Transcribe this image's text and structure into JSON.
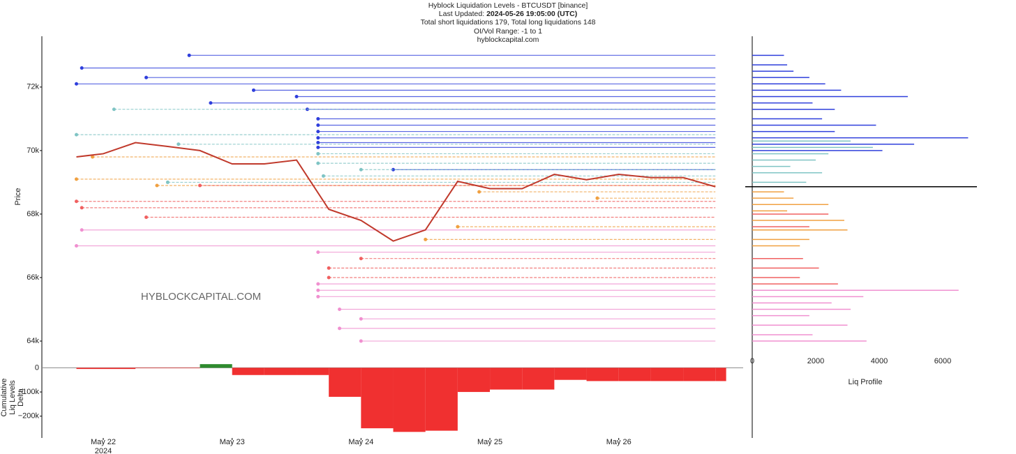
{
  "chart_data": [
    {
      "type": "line",
      "title": "Hyblock Liquidation Levels - BTCUSDT [binance]",
      "updated_label": "Last Updated:",
      "updated_value": "2024-05-26 19:05:00 (UTC)",
      "totals": "Total short liquidations 179, Total long liquidations 148",
      "range": "OI/Vol Range: -1 to 1",
      "site": "hyblockcapital.com",
      "watermark": "HYBLOCKCAPITAL.COM",
      "ylabel": "Price",
      "x": [
        "2024-05-21 19:00",
        "2024-05-22 00:00",
        "2024-05-22 06:00",
        "2024-05-22 12:00",
        "2024-05-22 18:00",
        "2024-05-23 00:00",
        "2024-05-23 06:00",
        "2024-05-23 12:00",
        "2024-05-23 18:00",
        "2024-05-24 00:00",
        "2024-05-24 06:00",
        "2024-05-24 12:00",
        "2024-05-24 18:00",
        "2024-05-25 00:00",
        "2024-05-25 06:00",
        "2024-05-25 12:00",
        "2024-05-25 18:00",
        "2024-05-26 00:00",
        "2024-05-26 06:00",
        "2024-05-26 12:00",
        "2024-05-26 18:00"
      ],
      "series": [
        {
          "color": "#c0392b",
          "values": [
            69800,
            69900,
            70250,
            70130,
            70000,
            69580,
            69580,
            69700,
            68150,
            67800,
            67150,
            67500,
            69030,
            68800,
            68800,
            69250,
            69080,
            69250,
            69150,
            69150,
            68860
          ]
        }
      ],
      "xlim": [
        "2024-05-21 12:34",
        "2024-05-26 23:10"
      ],
      "xticks": [
        {
          "value": "2024-05-22 00:00",
          "label": "May 22"
        },
        {
          "value": "2024-05-23 00:00",
          "label": "May 23"
        },
        {
          "value": "2024-05-24 00:00",
          "label": "May 24"
        },
        {
          "value": "2024-05-25 00:00",
          "label": "May 25"
        },
        {
          "value": "2024-05-26 00:00",
          "label": "May 26"
        }
      ],
      "x_year_label": "2024",
      "ylim": [
        63540,
        73600
      ],
      "yticks": [
        {
          "value": 64000,
          "label": "64k"
        },
        {
          "value": 66000,
          "label": "66k"
        },
        {
          "value": 68000,
          "label": "68k"
        },
        {
          "value": 70000,
          "label": "70k"
        },
        {
          "value": 72000,
          "label": "72k"
        }
      ],
      "levels": [
        {
          "color": "#2f3fdc",
          "prices": [
            73000,
            72600,
            72300,
            72100,
            71900,
            71700,
            71500,
            71300,
            71000,
            70800,
            70600,
            70400,
            70250,
            70100,
            69400
          ],
          "starts": [
            "2024-05-22 16:00",
            "2024-05-21 20:00",
            "2024-05-22 08:00",
            "2024-05-21 19:00",
            "2024-05-23 04:00",
            "2024-05-23 12:00",
            "2024-05-22 20:00",
            "2024-05-23 14:00",
            "2024-05-23 16:00",
            "2024-05-23 16:00",
            "2024-05-23 16:00",
            "2024-05-23 16:00",
            "2024-05-23 16:00",
            "2024-05-23 16:00",
            "2024-05-24 06:00"
          ]
        },
        {
          "color": "#7fc4c4",
          "prices": [
            71300,
            70500,
            70200,
            69900,
            69600,
            69400,
            69200,
            69000
          ],
          "starts": [
            "2024-05-22 02:00",
            "2024-05-21 19:00",
            "2024-05-22 14:00",
            "2024-05-23 16:00",
            "2024-05-23 16:00",
            "2024-05-24 00:00",
            "2024-05-23 17:00",
            "2024-05-22 12:00"
          ]
        },
        {
          "color": "#f0a040",
          "prices": [
            69800,
            69100,
            68900,
            68700,
            68500,
            67600,
            67200
          ],
          "starts": [
            "2024-05-21 22:00",
            "2024-05-21 19:00",
            "2024-05-22 10:00",
            "2024-05-24 22:00",
            "2024-05-25 20:00",
            "2024-05-24 18:00",
            "2024-05-24 12:00"
          ]
        },
        {
          "color": "#f06060",
          "prices": [
            68900,
            68400,
            68200,
            67900,
            66600,
            66300,
            66000
          ],
          "starts": [
            "2024-05-22 18:00",
            "2024-05-21 19:00",
            "2024-05-21 20:00",
            "2024-05-22 08:00",
            "2024-05-24 00:00",
            "2024-05-23 18:00",
            "2024-05-23 18:00"
          ]
        },
        {
          "color": "#f090d0",
          "prices": [
            67500,
            67000,
            66800,
            65800,
            65600,
            65400,
            65000,
            64700,
            64400,
            64000
          ],
          "starts": [
            "2024-05-21 20:00",
            "2024-05-21 19:00",
            "2024-05-23 16:00",
            "2024-05-23 16:00",
            "2024-05-23 16:00",
            "2024-05-23 16:00",
            "2024-05-23 20:00",
            "2024-05-24 00:00",
            "2024-05-23 20:00",
            "2024-05-24 00:00"
          ]
        }
      ]
    },
    {
      "type": "area",
      "ylabel": "Cumulative Liq Levels Delta",
      "x": [
        "2024-05-21 19:00",
        "2024-05-22 00:00",
        "2024-05-22 06:00",
        "2024-05-22 12:00",
        "2024-05-22 18:00",
        "2024-05-23 00:00",
        "2024-05-23 06:00",
        "2024-05-23 12:00",
        "2024-05-23 18:00",
        "2024-05-24 00:00",
        "2024-05-24 06:00",
        "2024-05-24 12:00",
        "2024-05-24 18:00",
        "2024-05-25 00:00",
        "2024-05-25 06:00",
        "2024-05-25 12:00",
        "2024-05-25 18:00",
        "2024-05-26 00:00",
        "2024-05-26 06:00",
        "2024-05-26 12:00",
        "2024-05-26 18:00"
      ],
      "values": [
        -5000,
        -5000,
        -2000,
        -2000,
        15000,
        -30000,
        -30000,
        -30000,
        -120000,
        -250000,
        -265000,
        -260000,
        -100000,
        -90000,
        -90000,
        -50000,
        -55000,
        -55000,
        -55000,
        -55000,
        -55000
      ],
      "pos_color": "#2e8b2e",
      "neg_color": "#f03030",
      "ylim": [
        -290000,
        50000
      ],
      "yticks": [
        {
          "value": -200000,
          "label": "−200k"
        },
        {
          "value": -100000,
          "label": "−100k"
        },
        0
      ]
    },
    {
      "type": "hbar",
      "xlabel": "Liq Profile",
      "xlim": [
        0,
        7000
      ],
      "xticks": [
        0,
        2000,
        4000,
        6000
      ],
      "series": [
        {
          "color": "#2f3fdc",
          "prices": [
            73000,
            72700,
            72500,
            72300,
            72100,
            71900,
            71700,
            71500,
            71300,
            71000,
            70800,
            70600,
            70400,
            70200,
            70000
          ],
          "values": [
            1000,
            1100,
            1300,
            1800,
            2300,
            2800,
            4900,
            1900,
            2600,
            2200,
            3900,
            2600,
            6800,
            5100,
            4100
          ]
        },
        {
          "color": "#7fc4c4",
          "prices": [
            70300,
            70100,
            69900,
            69700,
            69500,
            69300,
            69000
          ],
          "values": [
            3100,
            3800,
            2400,
            2000,
            1200,
            2200,
            1700
          ]
        },
        {
          "color": "#f0a040",
          "prices": [
            68700,
            68500,
            68300,
            68100,
            67800,
            67500,
            67200,
            67000
          ],
          "values": [
            1000,
            1300,
            2400,
            1100,
            2900,
            3000,
            1800,
            1500
          ]
        },
        {
          "color": "#f06060",
          "prices": [
            68000,
            67600,
            66600,
            66300,
            66000,
            65800
          ],
          "values": [
            2400,
            1800,
            1600,
            2100,
            1500,
            2700
          ]
        },
        {
          "color": "#f090d0",
          "prices": [
            65600,
            65400,
            65200,
            65000,
            64800,
            64500,
            64200,
            64000
          ],
          "values": [
            6500,
            3500,
            2500,
            3100,
            1800,
            3000,
            1900,
            3600
          ]
        }
      ]
    }
  ]
}
